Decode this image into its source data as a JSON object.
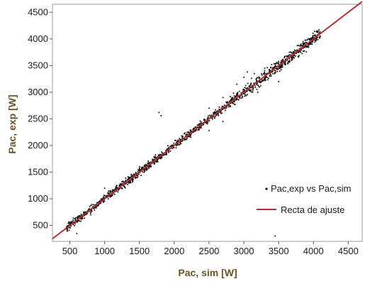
{
  "chart_data": {
    "type": "scatter",
    "title": "",
    "xlabel": "Pac, sim [W]",
    "ylabel": "Pac, exp [W]",
    "xlim": [
      250,
      4700
    ],
    "ylim": [
      200,
      4650
    ],
    "x_ticks": [
      500,
      1000,
      1500,
      2000,
      2500,
      3000,
      3500,
      4000,
      4500
    ],
    "y_ticks": [
      500,
      1000,
      1500,
      2000,
      2500,
      3000,
      3500,
      4000,
      4500
    ],
    "grid": false,
    "legend_position": "bottom-right",
    "series": [
      {
        "name": "Pac,exp vs Pac,sim",
        "type": "scatter",
        "color": "#111111",
        "note_points": "dense cloud along the y = x line from ~450 W to ~4100 W, plus scattered outliers",
        "outliers": [
          {
            "x": 1780,
            "y": 2620
          },
          {
            "x": 1810,
            "y": 2560
          },
          {
            "x": 2150,
            "y": 2100
          },
          {
            "x": 2500,
            "y": 2700
          },
          {
            "x": 2700,
            "y": 2900
          },
          {
            "x": 2900,
            "y": 3150
          },
          {
            "x": 3000,
            "y": 3280
          },
          {
            "x": 3050,
            "y": 3380
          },
          {
            "x": 3150,
            "y": 3350
          },
          {
            "x": 3300,
            "y": 3450
          },
          {
            "x": 3400,
            "y": 3520
          },
          {
            "x": 3500,
            "y": 3550
          },
          {
            "x": 3600,
            "y": 3620
          },
          {
            "x": 3700,
            "y": 3650
          },
          {
            "x": 3450,
            "y": 300
          },
          {
            "x": 2500,
            "y": 2280
          },
          {
            "x": 2700,
            "y": 2450
          },
          {
            "x": 3200,
            "y": 3000
          },
          {
            "x": 3500,
            "y": 3200
          },
          {
            "x": 1000,
            "y": 1200
          },
          {
            "x": 600,
            "y": 350
          },
          {
            "x": 800,
            "y": 700
          }
        ]
      },
      {
        "name": "Recta de ajuste",
        "type": "line",
        "color": "#b03030",
        "x": [
          250,
          4700
        ],
        "y": [
          250,
          4700
        ]
      }
    ]
  }
}
